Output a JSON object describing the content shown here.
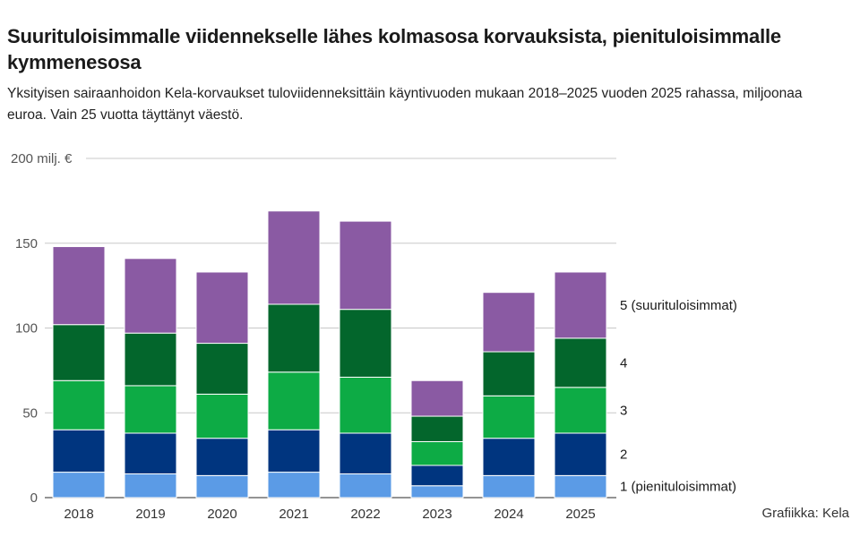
{
  "title": "Suurituloisimmalle viidennekselle lähes kolmasosa korvauksista, pienituloisimmalle kymmenesosa",
  "subtitle": "Yksityisen sairaanhoidon Kela-korvaukset tuloviidenneksittäin käyntivuoden mukaan 2018–2025 vuoden 2025 rahassa, miljoonaa euroa. Vain 25 vuotta täyttänyt väestö.",
  "source": "Grafiikka: Kela",
  "chart_data": {
    "type": "bar",
    "stacked": true,
    "categories": [
      "2018",
      "2019",
      "2020",
      "2021",
      "2022",
      "2023",
      "2024",
      "2025"
    ],
    "series": [
      {
        "name": "1 (pienituloisimmat)",
        "color": "#5b9be6",
        "values": [
          15,
          14,
          13,
          15,
          14,
          7,
          13,
          13
        ]
      },
      {
        "name": "2",
        "color": "#00357f",
        "values": [
          25,
          24,
          22,
          25,
          24,
          12,
          22,
          25
        ]
      },
      {
        "name": "3",
        "color": "#0dab45",
        "values": [
          29,
          28,
          26,
          34,
          33,
          14,
          25,
          27
        ]
      },
      {
        "name": "4",
        "color": "#03662c",
        "values": [
          33,
          31,
          30,
          40,
          40,
          15,
          26,
          29
        ]
      },
      {
        "name": "5 (suurituloisimmat)",
        "color": "#8a5aa3",
        "values": [
          46,
          44,
          42,
          55,
          52,
          21,
          35,
          39
        ]
      }
    ],
    "yticks": [
      {
        "value": 0,
        "label": "0"
      },
      {
        "value": 50,
        "label": "50"
      },
      {
        "value": 100,
        "label": "100"
      },
      {
        "value": 150,
        "label": "150"
      },
      {
        "value": 200,
        "label": "200 milj. €"
      }
    ],
    "ylim": [
      0,
      200
    ],
    "grid": true,
    "legend": "right, aligned to the 2025 stack"
  }
}
